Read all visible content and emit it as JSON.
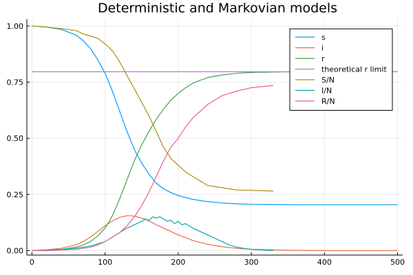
{
  "chart_data": {
    "type": "line",
    "title": "Deterministic and Markovian models",
    "xlabel": "",
    "ylabel": "",
    "xlim": [
      -7,
      507
    ],
    "ylim": [
      -0.02,
      1.03
    ],
    "grid": true,
    "legend_position": "top-right",
    "x_ticks": [
      0,
      100,
      200,
      300,
      400,
      500
    ],
    "y_ticks": [
      0.0,
      0.25,
      0.5,
      0.75,
      1.0
    ],
    "x_tick_labels": [
      "0",
      "100",
      "200",
      "300",
      "400",
      "500"
    ],
    "y_tick_labels": [
      "0.00",
      "0.25",
      "0.50",
      "0.75",
      "1.00"
    ],
    "series": [
      {
        "name": "s",
        "color": "#009AFA",
        "x": [
          0,
          20,
          40,
          60,
          70,
          80,
          90,
          100,
          110,
          120,
          130,
          140,
          150,
          160,
          170,
          180,
          190,
          200,
          220,
          240,
          260,
          280,
          300,
          330,
          360,
          400,
          450,
          500
        ],
        "y": [
          1.0,
          0.995,
          0.985,
          0.96,
          0.935,
          0.9,
          0.85,
          0.79,
          0.71,
          0.62,
          0.53,
          0.45,
          0.39,
          0.34,
          0.3,
          0.275,
          0.258,
          0.245,
          0.228,
          0.218,
          0.212,
          0.208,
          0.206,
          0.205,
          0.204,
          0.204,
          0.204,
          0.204
        ]
      },
      {
        "name": "i",
        "color": "#E36F47",
        "x": [
          0,
          20,
          40,
          60,
          70,
          80,
          90,
          100,
          110,
          120,
          130,
          135,
          140,
          150,
          160,
          170,
          180,
          200,
          220,
          240,
          260,
          280,
          300,
          330,
          360,
          400,
          450,
          500
        ],
        "y": [
          0.0,
          0.003,
          0.01,
          0.025,
          0.04,
          0.06,
          0.085,
          0.11,
          0.132,
          0.148,
          0.155,
          0.155,
          0.153,
          0.145,
          0.132,
          0.115,
          0.1,
          0.07,
          0.045,
          0.028,
          0.017,
          0.01,
          0.006,
          0.003,
          0.001,
          0.0,
          0.0,
          0.0
        ]
      },
      {
        "name": "r",
        "color": "#3EA44E",
        "x": [
          0,
          20,
          40,
          60,
          70,
          80,
          90,
          100,
          110,
          120,
          130,
          140,
          150,
          160,
          170,
          180,
          190,
          200,
          210,
          220,
          240,
          260,
          280,
          300,
          330,
          360,
          400,
          450,
          500
        ],
        "y": [
          0.0,
          0.002,
          0.005,
          0.015,
          0.025,
          0.04,
          0.065,
          0.1,
          0.155,
          0.23,
          0.315,
          0.4,
          0.47,
          0.53,
          0.585,
          0.63,
          0.67,
          0.7,
          0.725,
          0.745,
          0.77,
          0.782,
          0.789,
          0.793,
          0.795,
          0.796,
          0.796,
          0.796,
          0.796
        ]
      },
      {
        "name": "theoretical r limit",
        "color": "#C271D2",
        "x": [
          0,
          500
        ],
        "y": [
          0.796,
          0.796
        ]
      },
      {
        "name": "S/N",
        "color": "#AC8D18",
        "x": [
          0,
          20,
          40,
          60,
          70,
          80,
          90,
          100,
          110,
          120,
          130,
          140,
          150,
          160,
          170,
          180,
          190,
          200,
          210,
          220,
          230,
          240,
          250,
          260,
          270,
          280,
          300,
          330
        ],
        "y": [
          1.0,
          0.995,
          0.988,
          0.98,
          0.965,
          0.955,
          0.945,
          0.92,
          0.89,
          0.84,
          0.78,
          0.72,
          0.66,
          0.6,
          0.53,
          0.46,
          0.41,
          0.38,
          0.35,
          0.33,
          0.31,
          0.29,
          0.285,
          0.28,
          0.275,
          0.27,
          0.268,
          0.265
        ]
      },
      {
        "name": "I/N",
        "color": "#00A9AD",
        "x": [
          0,
          20,
          40,
          60,
          70,
          80,
          90,
          100,
          110,
          120,
          130,
          140,
          150,
          155,
          160,
          165,
          170,
          175,
          180,
          185,
          190,
          195,
          200,
          205,
          210,
          220,
          230,
          240,
          250,
          260,
          270,
          280,
          290,
          300,
          330
        ],
        "y": [
          0.0,
          0.003,
          0.005,
          0.01,
          0.015,
          0.02,
          0.03,
          0.04,
          0.06,
          0.08,
          0.1,
          0.115,
          0.13,
          0.14,
          0.135,
          0.15,
          0.145,
          0.15,
          0.14,
          0.13,
          0.135,
          0.12,
          0.13,
          0.115,
          0.12,
          0.1,
          0.085,
          0.07,
          0.055,
          0.04,
          0.025,
          0.015,
          0.01,
          0.005,
          0.0
        ]
      },
      {
        "name": "R/N",
        "color": "#ED5E93",
        "x": [
          0,
          20,
          40,
          60,
          70,
          80,
          90,
          100,
          110,
          120,
          130,
          140,
          150,
          160,
          170,
          180,
          190,
          200,
          210,
          220,
          230,
          240,
          250,
          260,
          270,
          280,
          300,
          330
        ],
        "y": [
          0.0,
          0.0,
          0.002,
          0.005,
          0.01,
          0.015,
          0.025,
          0.04,
          0.06,
          0.08,
          0.11,
          0.15,
          0.2,
          0.26,
          0.33,
          0.4,
          0.46,
          0.5,
          0.55,
          0.59,
          0.62,
          0.65,
          0.67,
          0.69,
          0.7,
          0.71,
          0.725,
          0.735
        ]
      }
    ]
  }
}
